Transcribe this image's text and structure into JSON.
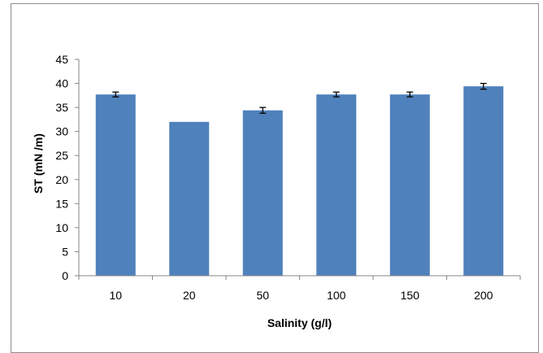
{
  "chart_data": {
    "type": "bar",
    "title": "",
    "xlabel": "Salinity (g/l)",
    "ylabel": "ST (mN /m)",
    "categories": [
      "10",
      "20",
      "50",
      "100",
      "150",
      "200"
    ],
    "values": [
      37.7,
      32.0,
      34.4,
      37.7,
      37.7,
      39.4
    ],
    "error": [
      0.5,
      0.0,
      0.6,
      0.5,
      0.5,
      0.6
    ],
    "ylim": [
      0,
      45
    ],
    "yticks": [
      0,
      5,
      10,
      15,
      20,
      25,
      30,
      35,
      40,
      45
    ],
    "grid": false,
    "legend": "none",
    "bar_color": "#4f81bd"
  }
}
